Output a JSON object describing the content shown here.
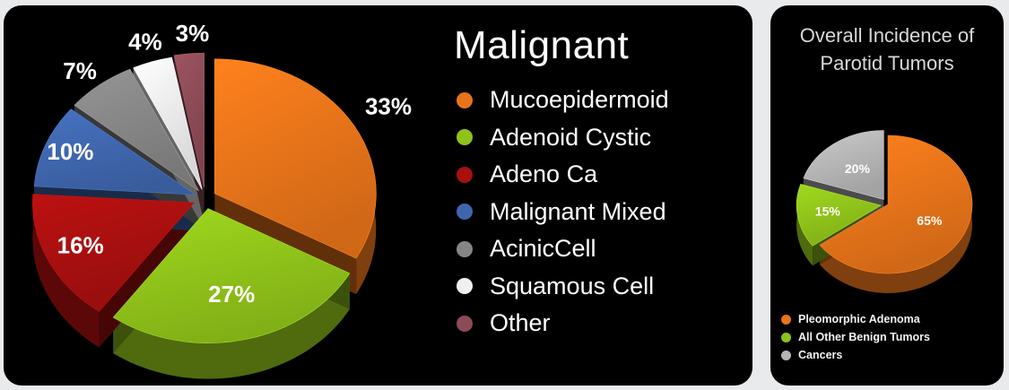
{
  "chart_data": [
    {
      "type": "pie",
      "title": "Malignant",
      "categories": [
        "Mucoepidermoid",
        "Adenoid Cystic",
        "Adeno Ca",
        "Malignant Mixed",
        "AcinicCell",
        "Squamous Cell",
        "Other"
      ],
      "values": [
        33,
        27,
        16,
        10,
        7,
        4,
        3
      ],
      "labels": [
        "33%",
        "27%",
        "16%",
        "10%",
        "7%",
        "4%",
        "3%"
      ],
      "colors": [
        "#e8731a",
        "#8fc21a",
        "#a80f0f",
        "#3f66ad",
        "#858585",
        "#f0f0f0",
        "#8c4b57"
      ],
      "legend": "right",
      "style": "3d-exploded"
    },
    {
      "type": "pie",
      "title": "Overall Incidence of Parotid Tumors",
      "categories": [
        "Pleomorphic Adenoma",
        "All Other Benign Tumors",
        "Cancers"
      ],
      "values": [
        65,
        15,
        20
      ],
      "labels": [
        "65%",
        "15%",
        "20%"
      ],
      "colors": [
        "#e8731a",
        "#8fc21a",
        "#b5b5b5"
      ],
      "legend": "bottom-left",
      "style": "3d"
    }
  ]
}
